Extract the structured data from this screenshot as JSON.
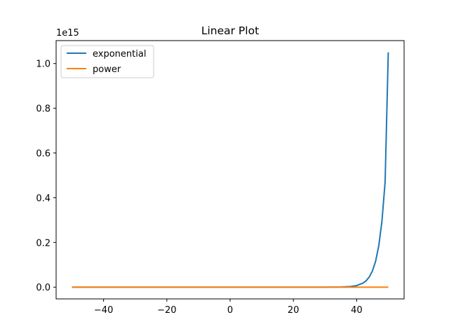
{
  "chart_data": {
    "type": "line",
    "title": "Linear Plot",
    "xlabel": "",
    "ylabel": "",
    "y_offset_label": "1e15",
    "xlim": [
      -55,
      55
    ],
    "ylim": [
      -0.0525,
      1.1025
    ],
    "x_ticks": [
      -40,
      -20,
      0,
      20,
      40
    ],
    "x_tick_labels": [
      "−40",
      "−20",
      "0",
      "20",
      "40"
    ],
    "y_ticks": [
      0.0,
      0.2,
      0.4,
      0.6,
      0.8,
      1.0
    ],
    "y_tick_labels": [
      "0.0",
      "0.2",
      "0.4",
      "0.6",
      "0.8",
      "1.0"
    ],
    "grid": false,
    "legend_position": "upper-left",
    "series": [
      {
        "name": "exponential",
        "color": "#1f77b4",
        "x": [
          -50,
          -30,
          -10,
          0,
          10,
          20,
          30,
          35,
          38,
          40,
          42,
          43,
          44,
          45,
          46,
          47,
          48,
          49,
          50
        ],
        "y": [
          0,
          0,
          0,
          0,
          0,
          1e-06,
          0.0001,
          0.0007,
          0.0028,
          0.0071,
          0.018,
          0.0287,
          0.0458,
          0.073,
          0.1163,
          0.1854,
          0.2956,
          0.4713,
          1.05
        ]
      },
      {
        "name": "power",
        "color": "#ff7f0e",
        "x": [
          -50,
          50
        ],
        "y": [
          0,
          0
        ]
      }
    ]
  }
}
